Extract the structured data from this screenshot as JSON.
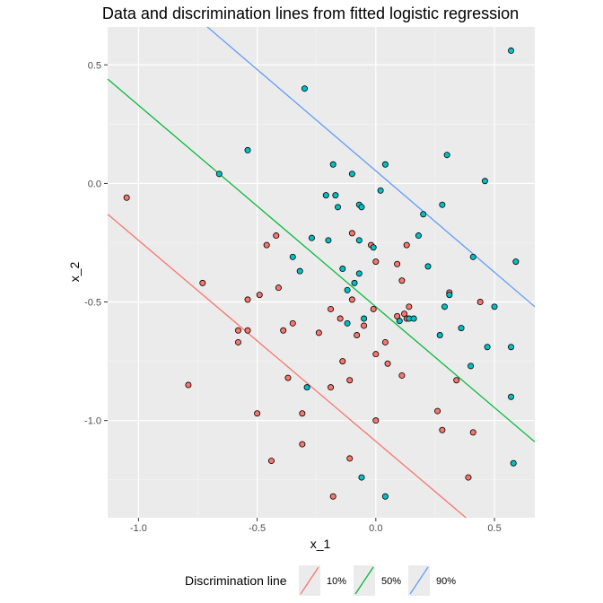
{
  "chart_data": {
    "type": "scatter",
    "title": "Data and discrimination lines from fitted logistic regression",
    "xlabel": "x_1",
    "ylabel": "x_2",
    "xlim": [
      -1.13,
      0.67
    ],
    "ylim": [
      -1.41,
      0.66
    ],
    "xticks": [
      -1.0,
      -0.5,
      0.0,
      0.5
    ],
    "xtick_labels": [
      "-1.0",
      "-0.5",
      "0.0",
      "0.5"
    ],
    "yticks": [
      0.5,
      0.0,
      -0.5,
      -1.0
    ],
    "ytick_labels": [
      "0.5",
      "0.0",
      "-0.5",
      "-1.0"
    ],
    "grid": true,
    "legend": {
      "title": "Discrimination line",
      "position": "bottom",
      "entries": [
        {
          "label": "10%",
          "color": "#f8766d"
        },
        {
          "label": "50%",
          "color": "#00ba38"
        },
        {
          "label": "90%",
          "color": "#619cff"
        }
      ]
    },
    "lines": [
      {
        "name": "10%",
        "color": "#f8766d",
        "x": [
          -1.13,
          0.38
        ],
        "y": [
          -0.13,
          -1.41
        ]
      },
      {
        "name": "50%",
        "color": "#00ba38",
        "x": [
          -1.13,
          0.67
        ],
        "y": [
          0.44,
          -1.09
        ]
      },
      {
        "name": "90%",
        "color": "#619cff",
        "x": [
          -0.71,
          0.67
        ],
        "y": [
          0.66,
          -0.52
        ]
      }
    ],
    "point_colors": {
      "red": "#f8766d",
      "teal": "#00bfc4"
    },
    "points_red": [
      [
        -1.05,
        -0.06
      ],
      [
        -0.73,
        -0.42
      ],
      [
        -0.79,
        -0.85
      ],
      [
        -0.54,
        -0.49
      ],
      [
        -0.58,
        -0.62
      ],
      [
        -0.58,
        -0.67
      ],
      [
        -0.54,
        -0.62
      ],
      [
        -0.49,
        -0.47
      ],
      [
        -0.46,
        -0.26
      ],
      [
        -0.42,
        -0.22
      ],
      [
        -0.41,
        -0.44
      ],
      [
        -0.39,
        -0.62
      ],
      [
        -0.35,
        -0.59
      ],
      [
        -0.37,
        -0.82
      ],
      [
        -0.31,
        -0.97
      ],
      [
        -0.5,
        -0.97
      ],
      [
        -0.44,
        -1.17
      ],
      [
        -0.31,
        -1.1
      ],
      [
        -0.24,
        -0.63
      ],
      [
        -0.19,
        -0.53
      ],
      [
        -0.19,
        -0.86
      ],
      [
        -0.15,
        -0.57
      ],
      [
        -0.14,
        -0.75
      ],
      [
        -0.1,
        -0.21
      ],
      [
        -0.11,
        -0.83
      ],
      [
        -0.1,
        -0.49
      ],
      [
        -0.08,
        -0.64
      ],
      [
        -0.05,
        -0.6
      ],
      [
        -0.02,
        -0.26
      ],
      [
        -0.01,
        -0.53
      ],
      [
        0.0,
        -0.33
      ],
      [
        0.0,
        -0.72
      ],
      [
        0.04,
        -0.67
      ],
      [
        0.05,
        -0.76
      ],
      [
        0.09,
        -0.34
      ],
      [
        0.09,
        -0.56
      ],
      [
        0.11,
        -0.41
      ],
      [
        0.11,
        -0.81
      ],
      [
        0.12,
        -0.55
      ],
      [
        0.13,
        -0.26
      ],
      [
        0.14,
        -0.52
      ],
      [
        0.13,
        -0.57
      ],
      [
        0.0,
        -1.0
      ],
      [
        -0.11,
        -1.16
      ],
      [
        -0.18,
        -1.32
      ],
      [
        0.26,
        -0.96
      ],
      [
        0.28,
        -1.04
      ],
      [
        0.31,
        -0.46
      ],
      [
        0.34,
        -0.83
      ],
      [
        0.39,
        -1.24
      ],
      [
        0.41,
        -1.05
      ],
      [
        0.44,
        -0.5
      ]
    ],
    "points_teal": [
      [
        0.57,
        0.56
      ],
      [
        -0.3,
        0.4
      ],
      [
        -0.54,
        0.14
      ],
      [
        -0.66,
        0.04
      ],
      [
        -0.18,
        0.08
      ],
      [
        -0.1,
        0.04
      ],
      [
        0.04,
        0.08
      ],
      [
        0.3,
        0.12
      ],
      [
        0.46,
        0.01
      ],
      [
        -0.21,
        -0.05
      ],
      [
        -0.17,
        -0.05
      ],
      [
        -0.16,
        -0.1
      ],
      [
        -0.07,
        -0.09
      ],
      [
        -0.06,
        -0.1
      ],
      [
        0.02,
        -0.03
      ],
      [
        0.2,
        -0.13
      ],
      [
        0.28,
        -0.09
      ],
      [
        -0.27,
        -0.23
      ],
      [
        -0.2,
        -0.24
      ],
      [
        -0.07,
        -0.24
      ],
      [
        -0.01,
        -0.27
      ],
      [
        0.18,
        -0.22
      ],
      [
        -0.35,
        -0.31
      ],
      [
        -0.32,
        -0.37
      ],
      [
        -0.14,
        -0.36
      ],
      [
        -0.07,
        -0.38
      ],
      [
        0.22,
        -0.35
      ],
      [
        0.41,
        -0.31
      ],
      [
        0.59,
        -0.33
      ],
      [
        -0.12,
        -0.45
      ],
      [
        -0.09,
        -0.42
      ],
      [
        0.14,
        -0.57
      ],
      [
        0.16,
        -0.57
      ],
      [
        0.31,
        -0.47
      ],
      [
        0.29,
        -0.52
      ],
      [
        0.5,
        -0.52
      ],
      [
        -0.12,
        -0.59
      ],
      [
        -0.05,
        -0.57
      ],
      [
        0.1,
        -0.58
      ],
      [
        0.36,
        -0.61
      ],
      [
        0.27,
        -0.64
      ],
      [
        0.47,
        -0.69
      ],
      [
        0.57,
        -0.69
      ],
      [
        0.4,
        -0.77
      ],
      [
        0.57,
        -0.9
      ],
      [
        -0.29,
        -0.86
      ],
      [
        -0.06,
        -1.24
      ],
      [
        0.04,
        -1.32
      ],
      [
        0.58,
        -1.18
      ]
    ]
  }
}
